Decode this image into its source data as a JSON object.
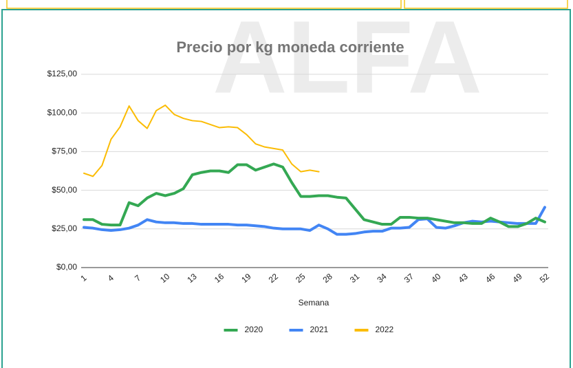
{
  "chart_data": {
    "type": "line",
    "title": "Precio por kg moneda corriente",
    "watermark": "ALFA",
    "x_label": "Semana",
    "x": [
      1,
      2,
      3,
      4,
      5,
      6,
      7,
      8,
      9,
      10,
      11,
      12,
      13,
      14,
      15,
      16,
      17,
      18,
      19,
      20,
      21,
      22,
      23,
      24,
      25,
      26,
      27,
      28,
      29,
      30,
      31,
      32,
      33,
      34,
      35,
      36,
      37,
      38,
      39,
      40,
      41,
      42,
      43,
      44,
      45,
      46,
      47,
      48,
      49,
      50,
      51,
      52
    ],
    "xlim": [
      1,
      52
    ],
    "xticks": [
      1,
      4,
      7,
      10,
      13,
      16,
      19,
      22,
      25,
      28,
      31,
      34,
      37,
      40,
      43,
      46,
      49,
      52
    ],
    "ylim": [
      0,
      125
    ],
    "yticks": [
      {
        "value": 0,
        "label": "$0,00"
      },
      {
        "value": 25,
        "label": "$25,00"
      },
      {
        "value": 50,
        "label": "$50,00"
      },
      {
        "value": 75,
        "label": "$75,00"
      },
      {
        "value": 100,
        "label": "$100,00"
      },
      {
        "value": 125,
        "label": "$125,00"
      }
    ],
    "grid": true,
    "legend": "bottom",
    "series": [
      {
        "name": "2020",
        "color": "#34a853",
        "values": [
          31,
          31,
          28,
          27.5,
          27.5,
          42,
          40,
          45,
          48,
          46.5,
          48,
          51,
          60,
          61.5,
          62.5,
          62.5,
          61.5,
          66.5,
          66.5,
          63,
          65,
          67,
          65,
          55,
          46,
          46,
          46.5,
          46.5,
          45.5,
          45,
          38,
          31,
          29.5,
          28,
          28,
          32.5,
          32.5,
          32,
          32,
          31,
          30,
          29,
          29,
          28.5,
          28.5,
          32,
          29.5,
          26.5,
          26.5,
          28.5,
          32,
          29.5
        ]
      },
      {
        "name": "2021",
        "color": "#4285f4",
        "values": [
          26,
          25.5,
          24.5,
          24,
          24.5,
          25.5,
          27.5,
          31,
          29.5,
          29,
          29,
          28.5,
          28.5,
          28,
          28,
          28,
          28,
          27.5,
          27.5,
          27,
          26.5,
          25.5,
          25,
          25,
          25,
          24,
          27.5,
          25,
          21.5,
          21.5,
          22,
          23,
          23.5,
          23.5,
          25.5,
          25.5,
          26,
          31,
          31.5,
          26,
          25.5,
          27,
          29,
          30,
          29.5,
          30,
          29.5,
          29,
          28.5,
          28.5,
          28.5,
          39
        ]
      },
      {
        "name": "2022",
        "color": "#fbbc04",
        "values": [
          61,
          59,
          66,
          83,
          91,
          104.5,
          95,
          90,
          101.5,
          105,
          99,
          96.5,
          95,
          94.5,
          92.5,
          90.5,
          91,
          90.5,
          86,
          80,
          78,
          77,
          76,
          67,
          62,
          63,
          62,
          null,
          null,
          null,
          null,
          null,
          null,
          null,
          null,
          null,
          null,
          null,
          null,
          null,
          null,
          null,
          null,
          null,
          null,
          null,
          null,
          null,
          null,
          null,
          null,
          null
        ]
      }
    ]
  }
}
